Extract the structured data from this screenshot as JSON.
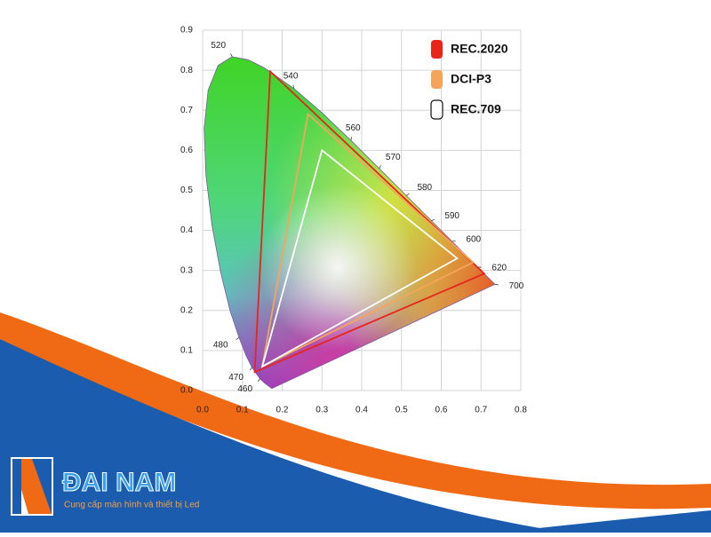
{
  "chart_data": {
    "type": "gamut",
    "xlim": [
      0,
      0.8
    ],
    "ylim": [
      0,
      0.9
    ],
    "xticks": [
      {
        "value": 0,
        "label": "0.0"
      },
      0.1,
      0.2,
      0.3,
      0.4,
      0.5,
      0.6,
      0.7,
      0.8
    ],
    "yticks": [
      {
        "value": 0,
        "label": "0.0"
      },
      0.1,
      0.2,
      0.3,
      0.4,
      0.5,
      0.6,
      0.7,
      0.8,
      0.9
    ],
    "grid": true,
    "legend": "upper right",
    "locus": {
      "x": [
        0.1741,
        0.1566,
        0.144,
        0.1241,
        0.1096,
        0.0913,
        0.0687,
        0.0454,
        0.0235,
        0.0082,
        0.0039,
        0.0139,
        0.0389,
        0.0743,
        0.1142,
        0.1547,
        0.2296,
        0.3016,
        0.3731,
        0.4441,
        0.5125,
        0.5752,
        0.627,
        0.6915,
        0.7347
      ],
      "y": [
        0.005,
        0.0177,
        0.0297,
        0.0578,
        0.0868,
        0.1327,
        0.2007,
        0.295,
        0.4127,
        0.5384,
        0.6548,
        0.7502,
        0.812,
        0.8338,
        0.8262,
        0.8059,
        0.7543,
        0.6923,
        0.6245,
        0.5547,
        0.4866,
        0.4242,
        0.3725,
        0.3083,
        0.2653
      ],
      "labels": [
        null,
        null,
        "460",
        "470",
        null,
        "480",
        null,
        null,
        null,
        null,
        null,
        null,
        null,
        "520",
        null,
        null,
        "540",
        null,
        "560",
        "570",
        "580",
        "590",
        "600",
        "620",
        "700"
      ]
    },
    "series": [
      {
        "name": "REC.2020",
        "color": "#e8241b",
        "x": [
          0.708,
          0.17,
          0.131
        ],
        "y": [
          0.292,
          0.797,
          0.046
        ]
      },
      {
        "name": "DCI-P3",
        "color": "#f4a55a",
        "x": [
          0.68,
          0.265,
          0.15
        ],
        "y": [
          0.32,
          0.69,
          0.06
        ]
      },
      {
        "name": "REC.709",
        "color": "#ffffff",
        "x": [
          0.64,
          0.3,
          0.15
        ],
        "y": [
          0.33,
          0.6,
          0.06
        ]
      }
    ]
  },
  "branding": {
    "name": "ĐAI NAM",
    "tagline": "Cung cấp màn hình và thiết bị Led"
  }
}
